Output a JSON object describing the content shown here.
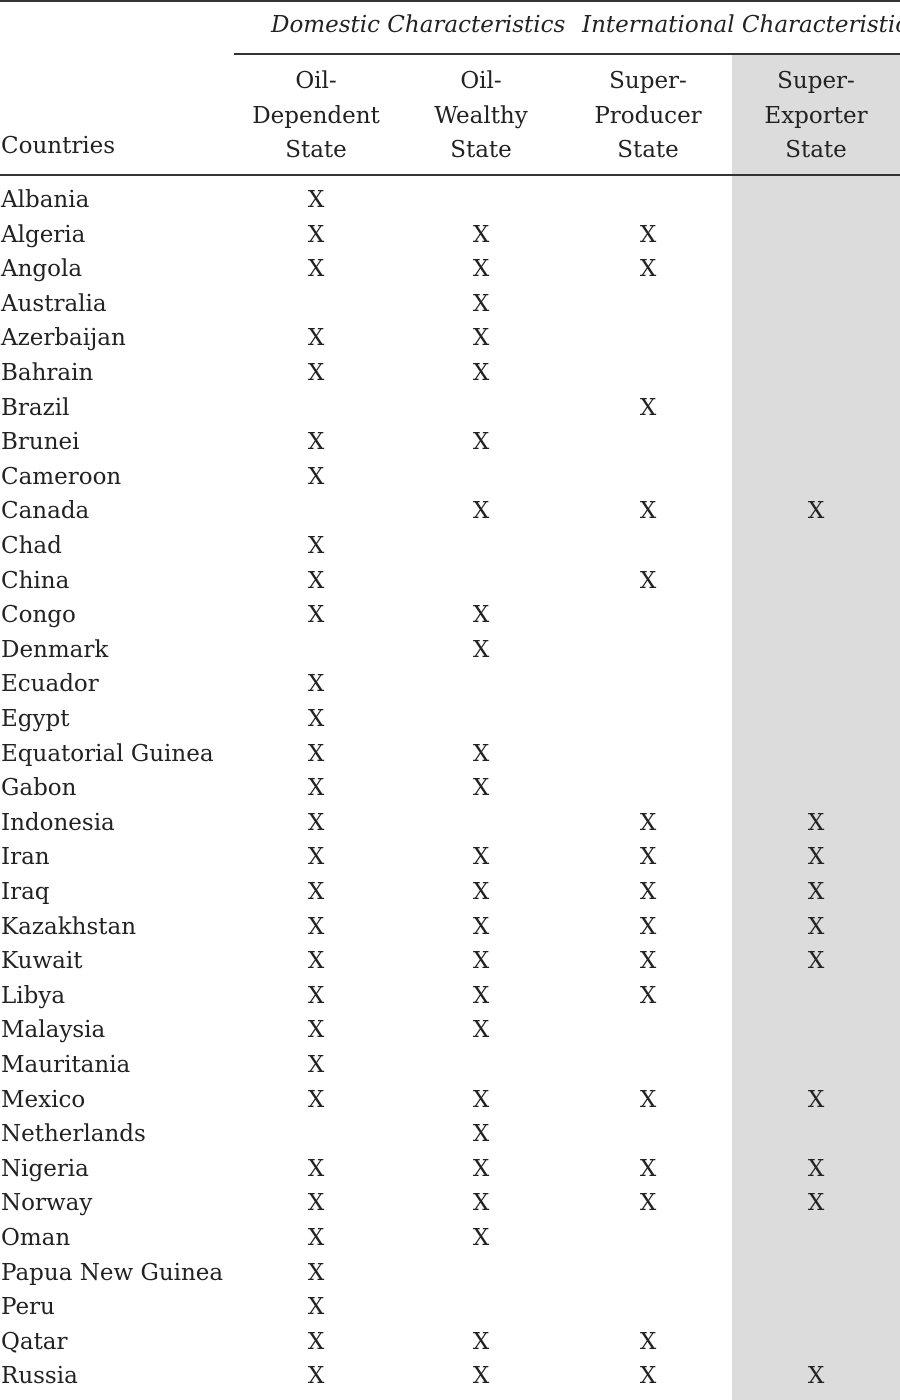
{
  "colors": {
    "rule": "#333333",
    "highlight_column": "#dcdcdd",
    "text": "#222222"
  },
  "header": {
    "groups": [
      "Domestic Characteristics",
      "International Characteristics"
    ],
    "countries_label": "Countries",
    "columns": [
      [
        "Oil-",
        "Dependent",
        "State"
      ],
      [
        "Oil-",
        "Wealthy",
        "State"
      ],
      [
        "Super-",
        "Producer",
        "State"
      ],
      [
        "Super-",
        "Exporter",
        "State"
      ]
    ]
  },
  "mark": "X",
  "rows": [
    {
      "country": "Albania",
      "marks": [
        1,
        0,
        0,
        0
      ]
    },
    {
      "country": "Algeria",
      "marks": [
        1,
        1,
        1,
        0
      ]
    },
    {
      "country": "Angola",
      "marks": [
        1,
        1,
        1,
        0
      ]
    },
    {
      "country": "Australia",
      "marks": [
        0,
        1,
        0,
        0
      ]
    },
    {
      "country": "Azerbaijan",
      "marks": [
        1,
        1,
        0,
        0
      ]
    },
    {
      "country": "Bahrain",
      "marks": [
        1,
        1,
        0,
        0
      ]
    },
    {
      "country": "Brazil",
      "marks": [
        0,
        0,
        1,
        0
      ]
    },
    {
      "country": "Brunei",
      "marks": [
        1,
        1,
        0,
        0
      ]
    },
    {
      "country": "Cameroon",
      "marks": [
        1,
        0,
        0,
        0
      ]
    },
    {
      "country": "Canada",
      "marks": [
        0,
        1,
        1,
        1
      ]
    },
    {
      "country": "Chad",
      "marks": [
        1,
        0,
        0,
        0
      ]
    },
    {
      "country": "China",
      "marks": [
        1,
        0,
        1,
        0
      ]
    },
    {
      "country": "Congo",
      "marks": [
        1,
        1,
        0,
        0
      ]
    },
    {
      "country": "Denmark",
      "marks": [
        0,
        1,
        0,
        0
      ]
    },
    {
      "country": "Ecuador",
      "marks": [
        1,
        0,
        0,
        0
      ]
    },
    {
      "country": "Egypt",
      "marks": [
        1,
        0,
        0,
        0
      ]
    },
    {
      "country": "Equatorial Guinea",
      "marks": [
        1,
        1,
        0,
        0
      ]
    },
    {
      "country": "Gabon",
      "marks": [
        1,
        1,
        0,
        0
      ]
    },
    {
      "country": "Indonesia",
      "marks": [
        1,
        0,
        1,
        1
      ]
    },
    {
      "country": "Iran",
      "marks": [
        1,
        1,
        1,
        1
      ]
    },
    {
      "country": "Iraq",
      "marks": [
        1,
        1,
        1,
        1
      ]
    },
    {
      "country": "Kazakhstan",
      "marks": [
        1,
        1,
        1,
        1
      ]
    },
    {
      "country": "Kuwait",
      "marks": [
        1,
        1,
        1,
        1
      ]
    },
    {
      "country": "Libya",
      "marks": [
        1,
        1,
        1,
        0
      ]
    },
    {
      "country": "Malaysia",
      "marks": [
        1,
        1,
        0,
        0
      ]
    },
    {
      "country": "Mauritania",
      "marks": [
        1,
        0,
        0,
        0
      ]
    },
    {
      "country": "Mexico",
      "marks": [
        1,
        1,
        1,
        1
      ]
    },
    {
      "country": "Netherlands",
      "marks": [
        0,
        1,
        0,
        0
      ]
    },
    {
      "country": "Nigeria",
      "marks": [
        1,
        1,
        1,
        1
      ]
    },
    {
      "country": "Norway",
      "marks": [
        1,
        1,
        1,
        1
      ]
    },
    {
      "country": "Oman",
      "marks": [
        1,
        1,
        0,
        0
      ]
    },
    {
      "country": "Papua New Guinea",
      "marks": [
        1,
        0,
        0,
        0
      ]
    },
    {
      "country": "Peru",
      "marks": [
        1,
        0,
        0,
        0
      ]
    },
    {
      "country": "Qatar",
      "marks": [
        1,
        1,
        1,
        0
      ]
    },
    {
      "country": "Russia",
      "marks": [
        1,
        1,
        1,
        1
      ]
    }
  ]
}
